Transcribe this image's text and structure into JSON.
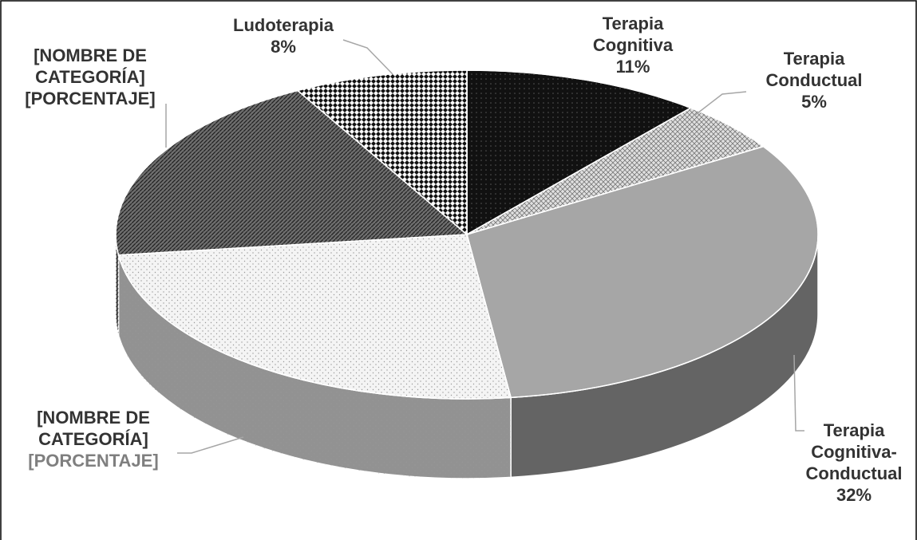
{
  "chart_data": {
    "type": "pie3d",
    "categories": [
      "Terapia Cognitiva",
      "Terapia Conductual",
      "Terapia Cognitiva-Conductual",
      "[NOMBRE DE CATEGORÍA]",
      "[NOMBRE DE CATEGORÍA]",
      "Ludoterapia"
    ],
    "values": [
      11,
      5,
      32,
      25,
      19,
      8
    ],
    "value_labels": [
      "11%",
      "5%",
      "32%",
      "[PORCENTAJE]",
      "[PORCENTAJE]",
      "8%"
    ],
    "colors": [
      "#111111",
      "#e0e0e0",
      "#a6a6a6",
      "#f4f4f4",
      "#6e6e6e",
      "#2a2a2a"
    ]
  }
}
